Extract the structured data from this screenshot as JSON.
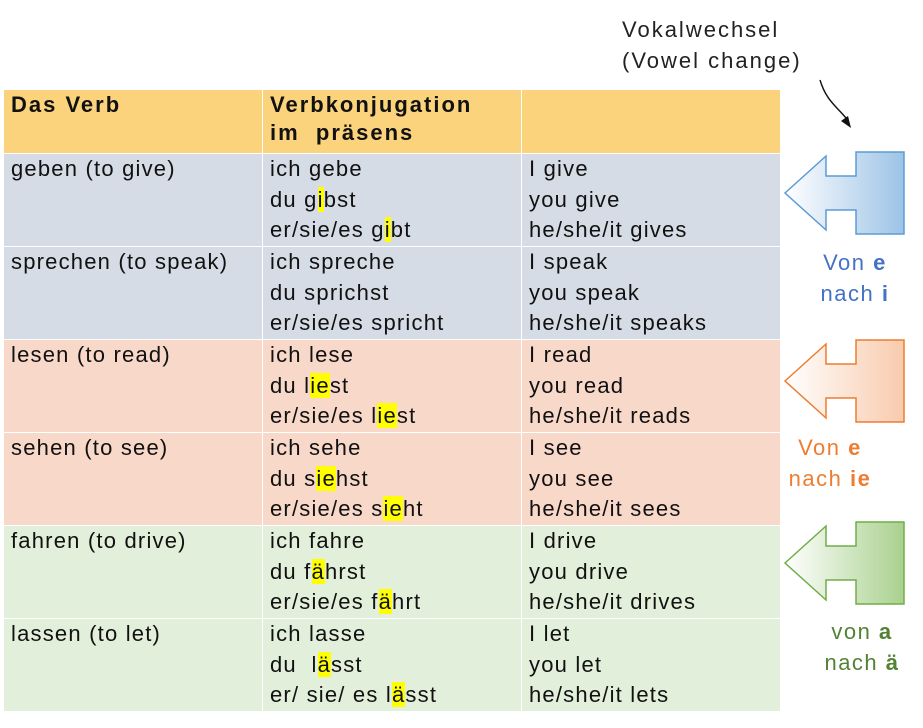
{
  "note": {
    "line1": "Vokalwechsel",
    "line2": "(Vowel change)"
  },
  "table": {
    "headers": [
      "Das Verb",
      "Verbkonjugation",
      "im  präsens",
      ""
    ],
    "rows": [
      {
        "verb": "geben (to give)",
        "conj": [
          [
            "ich gebe"
          ],
          [
            "du g",
            "i",
            "bst"
          ],
          [
            "er/sie/es g",
            "i",
            "bt"
          ]
        ],
        "eng": [
          "I give",
          "you give",
          "he/she/it gives"
        ]
      },
      {
        "verb": "sprechen (to speak)",
        "conj": [
          [
            "ich spreche"
          ],
          [
            "du sprichst"
          ],
          [
            "er/sie/es spricht"
          ]
        ],
        "eng": [
          "I speak",
          "you speak",
          "he/she/it speaks"
        ]
      },
      {
        "verb": "lesen (to read)",
        "conj": [
          [
            "ich lese"
          ],
          [
            "du l",
            "ie",
            "st"
          ],
          [
            "er/sie/es l",
            "ie",
            "st"
          ]
        ],
        "eng": [
          "I read",
          "you read",
          "he/she/it reads"
        ]
      },
      {
        "verb": "sehen (to see)",
        "conj": [
          [
            "ich sehe"
          ],
          [
            "du s",
            "ie",
            "hst"
          ],
          [
            "er/sie/es s",
            "ie",
            "ht"
          ]
        ],
        "eng": [
          "I see",
          "you see",
          "he/she/it sees"
        ]
      },
      {
        "verb": "fahren (to drive)",
        "conj": [
          [
            "ich fahre"
          ],
          [
            "du f",
            "ä",
            "hrst"
          ],
          [
            "er/sie/es f",
            "ä",
            "hrt"
          ]
        ],
        "eng": [
          "I drive",
          "you drive",
          "he/she/it drives"
        ]
      },
      {
        "verb": "lassen (to let)",
        "conj": [
          [
            "ich lasse"
          ],
          [
            "du  l",
            "ä",
            "sst"
          ],
          [
            "er/ sie/ es l",
            "ä",
            "sst"
          ]
        ],
        "eng": [
          "I let",
          "you let",
          "he/she/it lets"
        ]
      }
    ]
  },
  "labels": [
    {
      "line1": "Von ",
      "v1": "e",
      "line2": "nach ",
      "v2": "i",
      "color": "#4472c4"
    },
    {
      "line1": "Von ",
      "v1": "e",
      "line2": "nach ",
      "v2": "ie",
      "color": "#ed7d31"
    },
    {
      "line1": "von ",
      "v1": "a",
      "line2": "nach ",
      "v2": "ä",
      "color": "#548235"
    }
  ],
  "colors": {
    "header": "#fbd37d",
    "blue_rows": "#d6dce5",
    "red_rows": "#f8d8c9",
    "green_rows": "#e2efda",
    "highlight": "#ffff00"
  }
}
